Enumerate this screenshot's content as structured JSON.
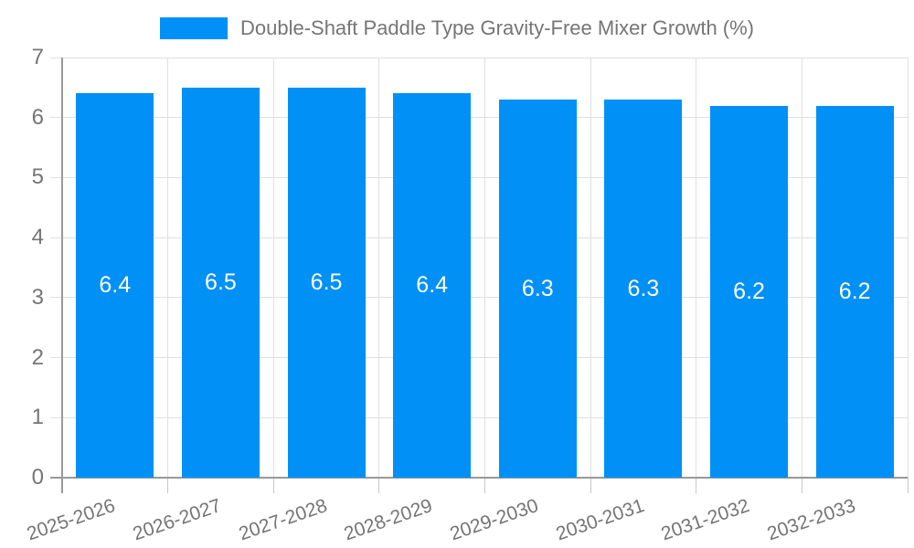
{
  "chart_data": {
    "type": "bar",
    "title": "Double-Shaft Paddle Type Gravity-Free Mixer Growth (%)",
    "categories": [
      "2025-2026",
      "2026-2027",
      "2027-2028",
      "2028-2029",
      "2029-2030",
      "2030-2031",
      "2031-2032",
      "2032-2033"
    ],
    "values": [
      6.4,
      6.5,
      6.5,
      6.4,
      6.3,
      6.3,
      6.2,
      6.2
    ],
    "value_labels": [
      "6.4",
      "6.5",
      "6.5",
      "6.4",
      "6.3",
      "6.3",
      "6.2",
      "6.2"
    ],
    "xlabel": "",
    "ylabel": "",
    "ylim": [
      0,
      7
    ],
    "yticks": [
      0,
      1,
      2,
      3,
      4,
      5,
      6,
      7
    ],
    "grid": true,
    "legend_position": "top",
    "legend_entries": [
      "Double-Shaft Paddle Type Gravity-Free Mixer Growth (%)"
    ],
    "value_label_position": "inside-center"
  },
  "colors": {
    "bar": "#0190f5",
    "grid_line": "#e0e0e0",
    "axis_line": "#999999",
    "tick_line": "#c8c8c8",
    "label_text": "#757575",
    "value_text": "#ffffff",
    "background": "#ffffff"
  }
}
